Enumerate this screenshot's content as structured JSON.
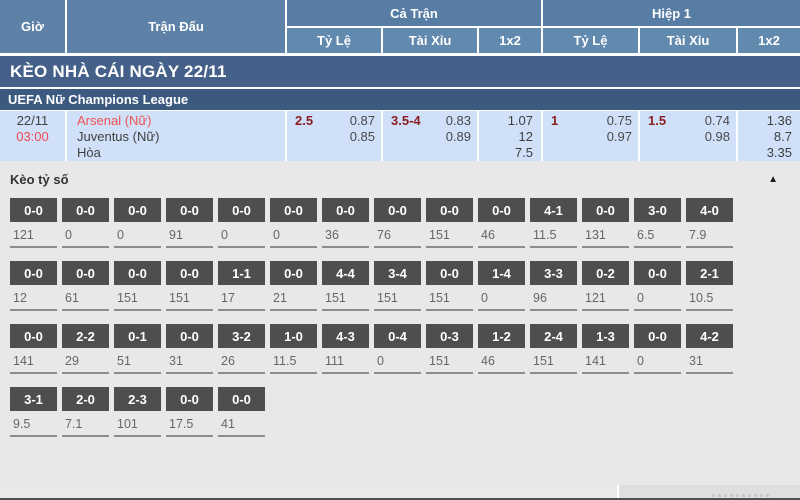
{
  "header": {
    "time_col": "Giờ",
    "match_col": "Trận Đấu",
    "full_match": "Cả Trận",
    "first_half": "Hiệp 1",
    "sub_cols": [
      "Tỷ Lệ",
      "Tài Xỉu",
      "1x2"
    ]
  },
  "banner": {
    "title": "KÈO NHÀ CÁI NGÀY 22/11"
  },
  "league": {
    "title": "UEFA Nữ Champions League"
  },
  "match": {
    "date": "22/11",
    "time": "03:00",
    "teams": [
      "Arsenal (Nữ)",
      "Juventus (Nữ)",
      "Hòa"
    ],
    "full": {
      "handicap_line": "2.5",
      "handicap_odds": [
        "0.87",
        "0.85"
      ],
      "ou_line": "3.5-4",
      "ou_odds": [
        "0.83",
        "0.89"
      ],
      "one_x_two": [
        "1.07",
        "12",
        "7.5"
      ]
    },
    "half": {
      "handicap_line": "1",
      "handicap_odds": [
        "0.75",
        "0.97"
      ],
      "ou_line": "1.5",
      "ou_odds": [
        "0.74",
        "0.98"
      ],
      "one_x_two": [
        "1.36",
        "8.7",
        "3.35"
      ]
    }
  },
  "score_odds": {
    "title": "Kèo tỷ số",
    "collapse_icon": "▲",
    "rows": [
      [
        [
          "0-0",
          "121"
        ],
        [
          "0-0",
          "0"
        ],
        [
          "0-0",
          "0"
        ],
        [
          "0-0",
          "91"
        ],
        [
          "0-0",
          "0"
        ],
        [
          "0-0",
          "0"
        ],
        [
          "0-0",
          "36"
        ],
        [
          "0-0",
          "76"
        ],
        [
          "0-0",
          "151"
        ],
        [
          "0-0",
          "46"
        ],
        [
          "4-1",
          "11.5"
        ],
        [
          "0-0",
          "131"
        ],
        [
          "3-0",
          "6.5"
        ],
        [
          "4-0",
          "7.9"
        ]
      ],
      [
        [
          "0-0",
          "12"
        ],
        [
          "0-0",
          "61"
        ],
        [
          "0-0",
          "151"
        ],
        [
          "0-0",
          "151"
        ],
        [
          "1-1",
          "17"
        ],
        [
          "0-0",
          "21"
        ],
        [
          "4-4",
          "151"
        ],
        [
          "3-4",
          "151"
        ],
        [
          "0-0",
          "151"
        ],
        [
          "1-4",
          "0"
        ],
        [
          "3-3",
          "96"
        ],
        [
          "0-2",
          "121"
        ],
        [
          "0-0",
          "0"
        ],
        [
          "2-1",
          "10.5"
        ]
      ],
      [
        [
          "0-0",
          "141"
        ],
        [
          "2-2",
          "29"
        ],
        [
          "0-1",
          "51"
        ],
        [
          "0-0",
          "31"
        ],
        [
          "3-2",
          "26"
        ],
        [
          "1-0",
          "11.5"
        ],
        [
          "4-3",
          "111"
        ],
        [
          "0-4",
          "0"
        ],
        [
          "0-3",
          "151"
        ],
        [
          "1-2",
          "46"
        ],
        [
          "2-4",
          "151"
        ],
        [
          "1-3",
          "141"
        ],
        [
          "0-0",
          "0"
        ],
        [
          "4-2",
          "31"
        ]
      ],
      [
        [
          "3-1",
          "9.5"
        ],
        [
          "2-0",
          "7.1"
        ],
        [
          "2-3",
          "101"
        ],
        [
          "0-0",
          "17.5"
        ],
        [
          "0-0",
          "41"
        ]
      ]
    ]
  },
  "colors": {
    "header_blue": "#5d81a7",
    "banner_blue": "#45618a",
    "league_blue": "#3c5a80",
    "match_row_bg": "#cfe0f8",
    "accent_red": "#f25352",
    "time_red": "#f14b50",
    "line_dark_red": "#8c1d1d",
    "score_box_gray": "#4e4e4e",
    "section_bg": "#e8e8e8"
  }
}
